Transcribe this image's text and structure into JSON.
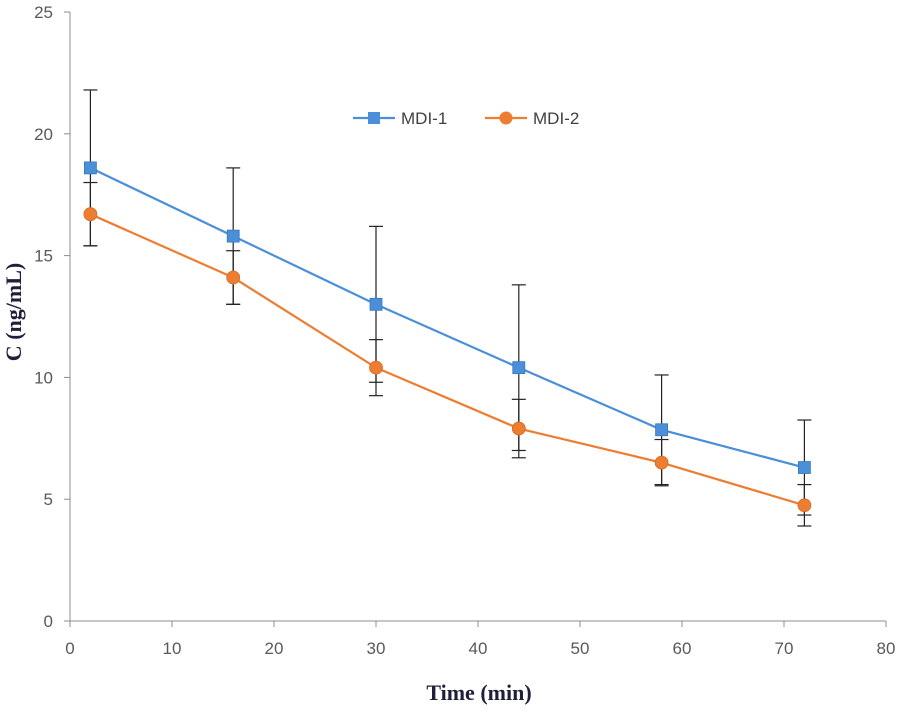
{
  "chart_data": {
    "type": "line",
    "title": "",
    "xlabel": "Time (min)",
    "ylabel": "C (ng/mL)",
    "xlim": [
      0,
      80
    ],
    "ylim": [
      0,
      25
    ],
    "xticks": [
      0,
      10,
      20,
      30,
      40,
      50,
      60,
      70,
      80
    ],
    "yticks": [
      0,
      5,
      10,
      15,
      20,
      25
    ],
    "xtick_labels": [
      "0",
      "10",
      "20",
      "30",
      "40",
      "50",
      "60",
      "70",
      "80"
    ],
    "ytick_labels": [
      "0",
      "5",
      "10",
      "15",
      "20",
      "25"
    ],
    "grid": false,
    "legend_position": "top-center",
    "error_bars": true,
    "x": [
      2,
      16,
      30,
      44,
      58,
      72
    ],
    "series": [
      {
        "name": "MDI-1",
        "marker": "square",
        "color": "#4a8fd8",
        "values": [
          18.6,
          15.8,
          13.0,
          10.4,
          7.85,
          6.3
        ],
        "error": [
          3.2,
          2.8,
          3.2,
          3.4,
          2.25,
          1.95
        ]
      },
      {
        "name": "MDI-2",
        "marker": "circle",
        "color": "#ed7d31",
        "values": [
          16.7,
          14.1,
          10.4,
          7.9,
          6.5,
          4.75
        ],
        "error": [
          1.3,
          1.1,
          1.15,
          1.2,
          0.95,
          0.85
        ]
      }
    ]
  }
}
